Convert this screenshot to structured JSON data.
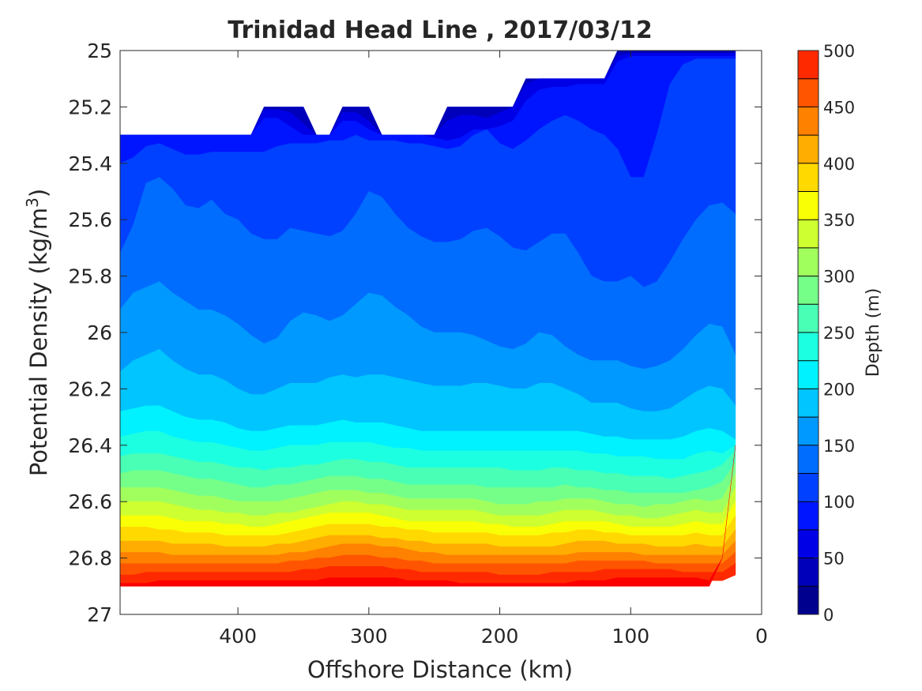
{
  "chart_data": {
    "type": "filled-contour",
    "title": "Trinidad Head Line , 2017/03/12",
    "xlabel": "Offshore Distance (km)",
    "ylabel": {
      "text": "Potential Density (kg/m",
      "sup": "3",
      "close": ")"
    },
    "xlim": [
      490,
      0
    ],
    "ylim": [
      25,
      27
    ],
    "x_reversed": true,
    "y_reversed": true,
    "xticks": [
      400,
      300,
      200,
      100,
      0
    ],
    "yticks": [
      25,
      25.2,
      25.4,
      25.6,
      25.8,
      26,
      26.2,
      26.4,
      26.6,
      26.8,
      27
    ],
    "colorbar": {
      "label": "Depth (m)",
      "range": [
        0,
        500
      ],
      "ticks": [
        0,
        50,
        100,
        150,
        200,
        250,
        300,
        350,
        400,
        450,
        500
      ],
      "levels": [
        0,
        25,
        50,
        75,
        100,
        125,
        150,
        175,
        200,
        225,
        250,
        275,
        300,
        325,
        350,
        375,
        400,
        425,
        450,
        475,
        500
      ],
      "colormap": "jet",
      "colors": [
        "#00008f",
        "#0000bb",
        "#0000e7",
        "#0015ff",
        "#0041ff",
        "#006dff",
        "#0099ff",
        "#00c5ff",
        "#00f1ff",
        "#1dffe1",
        "#49ffb5",
        "#75ff89",
        "#a1ff5d",
        "#cdff31",
        "#f9ff05",
        "#ffd900",
        "#ffad00",
        "#ff8100",
        "#ff5500",
        "#ff2900",
        "#fc0000",
        "#d00000",
        "#a40000"
      ]
    },
    "grid": false,
    "contour_boundaries": {
      "x": [
        490,
        480,
        470,
        460,
        450,
        440,
        430,
        420,
        410,
        400,
        390,
        380,
        370,
        360,
        350,
        340,
        330,
        320,
        310,
        300,
        290,
        280,
        270,
        260,
        250,
        240,
        230,
        220,
        210,
        200,
        190,
        180,
        170,
        160,
        150,
        140,
        130,
        120,
        110,
        100,
        90,
        80,
        70,
        60,
        50,
        40,
        30,
        20
      ],
      "top_edge": [
        25.3,
        25.3,
        25.3,
        25.3,
        25.3,
        25.3,
        25.3,
        25.3,
        25.3,
        25.3,
        25.3,
        25.2,
        25.2,
        25.2,
        25.2,
        25.3,
        25.3,
        25.2,
        25.2,
        25.2,
        25.3,
        25.3,
        25.3,
        25.3,
        25.3,
        25.2,
        25.2,
        25.2,
        25.2,
        25.2,
        25.2,
        25.1,
        25.1,
        25.1,
        25.1,
        25.1,
        25.1,
        25.1,
        25.0,
        25.0,
        25.0,
        25.0,
        25.0,
        25.0,
        25.0,
        25.0,
        25.0,
        25.0
      ],
      "bottom_edge": [
        26.9,
        26.9,
        26.9,
        26.9,
        26.9,
        26.9,
        26.9,
        26.9,
        26.9,
        26.9,
        26.9,
        26.9,
        26.9,
        26.9,
        26.9,
        26.9,
        26.9,
        26.9,
        26.9,
        26.9,
        26.9,
        26.9,
        26.9,
        26.9,
        26.9,
        26.9,
        26.9,
        26.9,
        26.9,
        26.9,
        26.9,
        26.9,
        26.9,
        26.9,
        26.9,
        26.9,
        26.9,
        26.9,
        26.9,
        26.9,
        26.9,
        26.9,
        26.9,
        26.9,
        26.9,
        26.9,
        26.8,
        26.4
      ],
      "depth_levels": [
        25,
        50,
        75,
        100,
        125,
        150,
        175,
        200,
        225,
        250,
        275,
        300,
        325,
        350,
        375,
        400,
        425,
        450,
        475
      ],
      "isolines": [
        [
          25.3,
          25.3,
          25.3,
          25.3,
          25.3,
          25.3,
          25.3,
          25.3,
          25.3,
          25.3,
          25.3,
          25.21,
          25.21,
          25.22,
          25.26,
          25.3,
          25.3,
          25.22,
          25.22,
          25.25,
          25.3,
          25.3,
          25.3,
          25.3,
          25.3,
          25.25,
          25.23,
          25.23,
          25.24,
          25.22,
          25.2,
          25.12,
          25.1,
          25.1,
          25.1,
          25.1,
          25.1,
          25.1,
          25.02,
          25.01,
          25.01,
          25.01,
          25.01,
          25.01,
          25.01,
          25.01,
          25.01,
          25.01
        ],
        [
          25.3,
          25.3,
          25.3,
          25.3,
          25.3,
          25.3,
          25.3,
          25.3,
          25.3,
          25.3,
          25.3,
          25.24,
          25.24,
          25.27,
          25.3,
          25.3,
          25.3,
          25.25,
          25.25,
          25.28,
          25.3,
          25.3,
          25.3,
          25.3,
          25.31,
          25.32,
          25.31,
          25.28,
          25.3,
          25.27,
          25.25,
          25.18,
          25.14,
          25.13,
          25.13,
          25.12,
          25.12,
          25.12,
          25.04,
          25.02,
          25.02,
          25.02,
          25.02,
          25.02,
          25.02,
          25.02,
          25.02,
          25.02
        ],
        [
          25.4,
          25.38,
          25.34,
          25.33,
          25.35,
          25.37,
          25.37,
          25.36,
          25.36,
          25.36,
          25.36,
          25.36,
          25.34,
          25.33,
          25.33,
          25.33,
          25.32,
          25.32,
          25.3,
          25.32,
          25.32,
          25.32,
          25.33,
          25.33,
          25.34,
          25.35,
          25.34,
          25.3,
          25.28,
          25.33,
          25.35,
          25.32,
          25.28,
          25.25,
          25.23,
          25.25,
          25.28,
          25.3,
          25.35,
          25.45,
          25.45,
          25.3,
          25.12,
          25.05,
          25.03,
          25.03,
          25.03,
          25.03
        ],
        [
          25.72,
          25.62,
          25.47,
          25.45,
          25.49,
          25.55,
          25.56,
          25.53,
          25.58,
          25.6,
          25.65,
          25.67,
          25.67,
          25.63,
          25.64,
          25.65,
          25.66,
          25.64,
          25.58,
          25.5,
          25.52,
          25.58,
          25.63,
          25.66,
          25.68,
          25.68,
          25.67,
          25.64,
          25.63,
          25.66,
          25.7,
          25.71,
          25.68,
          25.65,
          25.65,
          25.72,
          25.8,
          25.82,
          25.82,
          25.8,
          25.84,
          25.82,
          25.75,
          25.67,
          25.6,
          25.55,
          25.54,
          25.58
        ],
        [
          25.92,
          25.86,
          25.84,
          25.82,
          25.86,
          25.89,
          25.92,
          25.92,
          25.94,
          25.97,
          26.01,
          26.04,
          26.02,
          25.96,
          25.93,
          25.94,
          25.96,
          25.94,
          25.9,
          25.86,
          25.87,
          25.91,
          25.94,
          25.98,
          26.0,
          26.0,
          26.0,
          26.01,
          26.03,
          26.05,
          26.06,
          26.04,
          26.0,
          26.01,
          26.05,
          26.08,
          26.1,
          26.1,
          26.1,
          26.12,
          26.13,
          26.12,
          26.1,
          26.06,
          26.01,
          25.97,
          25.98,
          26.08
        ],
        [
          26.14,
          26.1,
          26.08,
          26.06,
          26.1,
          26.13,
          26.15,
          26.15,
          26.17,
          26.2,
          26.22,
          26.22,
          26.2,
          26.18,
          26.18,
          26.18,
          26.16,
          26.15,
          26.16,
          26.15,
          26.15,
          26.16,
          26.17,
          26.18,
          26.19,
          26.19,
          26.19,
          26.18,
          26.18,
          26.19,
          26.2,
          26.2,
          26.18,
          26.18,
          26.2,
          26.22,
          26.25,
          26.25,
          26.25,
          26.27,
          26.28,
          26.28,
          26.27,
          26.24,
          26.21,
          26.19,
          26.2,
          26.26
        ],
        [
          26.28,
          26.27,
          26.26,
          26.26,
          26.28,
          26.3,
          26.31,
          26.31,
          26.32,
          26.34,
          26.35,
          26.35,
          26.34,
          26.33,
          26.33,
          26.33,
          26.32,
          26.31,
          26.32,
          26.32,
          26.32,
          26.33,
          26.34,
          26.35,
          26.35,
          26.35,
          26.35,
          26.35,
          26.35,
          26.35,
          26.35,
          26.35,
          26.35,
          26.35,
          26.35,
          26.35,
          26.36,
          26.37,
          26.37,
          26.38,
          26.38,
          26.38,
          26.38,
          26.37,
          26.35,
          26.34,
          26.35,
          26.38
        ],
        [
          26.37,
          26.36,
          26.35,
          26.35,
          26.37,
          26.38,
          26.39,
          26.39,
          26.4,
          26.41,
          26.42,
          26.42,
          26.41,
          26.4,
          26.4,
          26.4,
          26.39,
          26.39,
          26.39,
          26.39,
          26.4,
          26.41,
          26.41,
          26.42,
          26.42,
          26.42,
          26.42,
          26.42,
          26.42,
          26.42,
          26.42,
          26.42,
          26.42,
          26.42,
          26.42,
          26.42,
          26.43,
          26.43,
          26.44,
          26.44,
          26.44,
          26.45,
          26.45,
          26.45,
          26.43,
          26.42,
          26.43,
          26.4
        ],
        [
          26.44,
          26.43,
          26.43,
          26.43,
          26.44,
          26.45,
          26.46,
          26.46,
          26.47,
          26.48,
          26.48,
          26.49,
          26.48,
          26.48,
          26.47,
          26.47,
          26.46,
          26.45,
          26.45,
          26.46,
          26.46,
          26.47,
          26.48,
          26.48,
          26.48,
          26.48,
          26.48,
          26.48,
          26.48,
          26.48,
          26.49,
          26.49,
          26.49,
          26.48,
          26.48,
          26.49,
          26.49,
          26.5,
          26.5,
          26.51,
          26.51,
          26.51,
          26.52,
          26.51,
          26.5,
          26.49,
          26.47,
          26.42
        ],
        [
          26.5,
          26.49,
          26.49,
          26.49,
          26.5,
          26.51,
          26.52,
          26.52,
          26.53,
          26.54,
          26.55,
          26.55,
          26.54,
          26.54,
          26.53,
          26.52,
          26.51,
          26.51,
          26.51,
          26.52,
          26.52,
          26.53,
          26.54,
          26.54,
          26.54,
          26.54,
          26.54,
          26.54,
          26.55,
          26.55,
          26.55,
          26.55,
          26.55,
          26.55,
          26.54,
          26.55,
          26.55,
          26.56,
          26.56,
          26.57,
          26.57,
          26.57,
          26.57,
          26.57,
          26.56,
          26.55,
          26.53,
          26.46
        ],
        [
          26.55,
          26.55,
          26.55,
          26.55,
          26.56,
          26.57,
          26.58,
          26.58,
          26.59,
          26.6,
          26.6,
          26.6,
          26.6,
          26.59,
          26.58,
          26.57,
          26.56,
          26.56,
          26.56,
          26.57,
          26.57,
          26.58,
          26.59,
          26.59,
          26.59,
          26.59,
          26.59,
          26.59,
          26.6,
          26.61,
          26.61,
          26.61,
          26.6,
          26.6,
          26.59,
          26.59,
          26.59,
          26.6,
          26.61,
          26.61,
          26.62,
          26.61,
          26.61,
          26.6,
          26.59,
          26.6,
          26.59,
          26.5
        ],
        [
          26.6,
          26.6,
          26.6,
          26.6,
          26.61,
          26.62,
          26.63,
          26.63,
          26.64,
          26.64,
          26.65,
          26.65,
          26.64,
          26.64,
          26.63,
          26.62,
          26.61,
          26.6,
          26.6,
          26.61,
          26.61,
          26.62,
          26.63,
          26.63,
          26.63,
          26.63,
          26.63,
          26.63,
          26.64,
          26.65,
          26.65,
          26.65,
          26.65,
          26.64,
          26.63,
          26.63,
          26.63,
          26.64,
          26.65,
          26.65,
          26.66,
          26.66,
          26.65,
          26.64,
          26.63,
          26.64,
          26.64,
          26.55
        ],
        [
          26.65,
          26.65,
          26.65,
          26.65,
          26.66,
          26.67,
          26.67,
          26.67,
          26.68,
          26.68,
          26.69,
          26.69,
          26.68,
          26.67,
          26.66,
          26.65,
          26.64,
          26.64,
          26.64,
          26.64,
          26.65,
          26.66,
          26.67,
          26.67,
          26.67,
          26.67,
          26.67,
          26.67,
          26.68,
          26.68,
          26.69,
          26.69,
          26.69,
          26.68,
          26.67,
          26.67,
          26.67,
          26.67,
          26.68,
          26.69,
          26.69,
          26.69,
          26.69,
          26.68,
          26.67,
          26.68,
          26.68,
          26.6
        ],
        [
          26.69,
          26.69,
          26.69,
          26.7,
          26.7,
          26.71,
          26.71,
          26.71,
          26.72,
          26.72,
          26.72,
          26.72,
          26.72,
          26.71,
          26.7,
          26.69,
          26.68,
          26.68,
          26.68,
          26.68,
          26.69,
          26.69,
          26.7,
          26.7,
          26.71,
          26.71,
          26.71,
          26.71,
          26.71,
          26.72,
          26.72,
          26.72,
          26.72,
          26.71,
          26.71,
          26.7,
          26.7,
          26.71,
          26.71,
          26.72,
          26.72,
          26.72,
          26.72,
          26.72,
          26.71,
          26.72,
          26.72,
          26.65
        ],
        [
          26.74,
          26.74,
          26.74,
          26.74,
          26.75,
          26.75,
          26.75,
          26.75,
          26.76,
          26.76,
          26.76,
          26.76,
          26.75,
          26.75,
          26.74,
          26.73,
          26.72,
          26.72,
          26.72,
          26.72,
          26.73,
          26.73,
          26.74,
          26.74,
          26.75,
          26.75,
          26.75,
          26.75,
          26.75,
          26.76,
          26.76,
          26.76,
          26.76,
          26.76,
          26.75,
          26.74,
          26.74,
          26.74,
          26.75,
          26.75,
          26.75,
          26.76,
          26.76,
          26.76,
          26.75,
          26.76,
          26.76,
          26.7
        ],
        [
          26.78,
          26.78,
          26.78,
          26.78,
          26.79,
          26.79,
          26.79,
          26.79,
          26.79,
          26.79,
          26.79,
          26.79,
          26.79,
          26.78,
          26.78,
          26.77,
          26.76,
          26.75,
          26.75,
          26.75,
          26.76,
          26.76,
          26.77,
          26.78,
          26.78,
          26.79,
          26.79,
          26.79,
          26.79,
          26.79,
          26.79,
          26.79,
          26.79,
          26.79,
          26.79,
          26.78,
          26.78,
          26.78,
          26.78,
          26.78,
          26.79,
          26.79,
          26.79,
          26.79,
          26.79,
          26.79,
          26.79,
          26.74
        ],
        [
          26.82,
          26.82,
          26.82,
          26.82,
          26.82,
          26.82,
          26.82,
          26.82,
          26.82,
          26.82,
          26.82,
          26.82,
          26.82,
          26.81,
          26.81,
          26.8,
          26.8,
          26.79,
          26.79,
          26.79,
          26.8,
          26.8,
          26.81,
          26.81,
          26.82,
          26.82,
          26.82,
          26.82,
          26.82,
          26.82,
          26.82,
          26.82,
          26.82,
          26.82,
          26.82,
          26.81,
          26.81,
          26.81,
          26.81,
          26.81,
          26.81,
          26.82,
          26.82,
          26.82,
          26.82,
          26.82,
          26.82,
          26.78
        ],
        [
          26.86,
          26.86,
          26.85,
          26.85,
          26.85,
          26.85,
          26.85,
          26.85,
          26.85,
          26.85,
          26.85,
          26.85,
          26.85,
          26.85,
          26.84,
          26.84,
          26.83,
          26.83,
          26.83,
          26.83,
          26.83,
          26.84,
          26.84,
          26.85,
          26.85,
          26.85,
          26.85,
          26.85,
          26.85,
          26.86,
          26.86,
          26.86,
          26.86,
          26.85,
          26.85,
          26.85,
          26.85,
          26.84,
          26.84,
          26.84,
          26.84,
          26.84,
          26.84,
          26.85,
          26.85,
          26.85,
          26.85,
          26.82
        ],
        [
          26.89,
          26.89,
          26.89,
          26.88,
          26.88,
          26.88,
          26.88,
          26.88,
          26.88,
          26.88,
          26.88,
          26.88,
          26.88,
          26.88,
          26.88,
          26.88,
          26.87,
          26.87,
          26.87,
          26.87,
          26.87,
          26.87,
          26.88,
          26.88,
          26.88,
          26.88,
          26.89,
          26.89,
          26.89,
          26.89,
          26.89,
          26.89,
          26.89,
          26.89,
          26.89,
          26.88,
          26.88,
          26.88,
          26.87,
          26.87,
          26.87,
          26.87,
          26.87,
          26.87,
          26.87,
          26.88,
          26.88,
          26.86
        ]
      ]
    }
  }
}
